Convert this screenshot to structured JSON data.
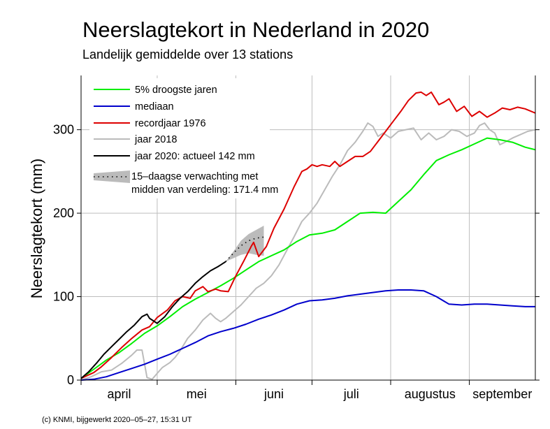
{
  "chart_data": {
    "type": "line",
    "title": "Neerslagtekort in Nederland in 2020",
    "subtitle": "Landelijk gemiddelde over 13 stations",
    "ylabel": "Neerslagtekort (mm)",
    "xlabel": "",
    "ylim": [
      0,
      365
    ],
    "yticks": [
      0,
      100,
      200,
      300
    ],
    "grid": true,
    "x_unit": "day of season (1 april = 0)",
    "xlim": [
      0,
      179
    ],
    "months": [
      {
        "label": "april",
        "start": 0,
        "end": 30
      },
      {
        "label": "mei",
        "start": 30,
        "end": 61
      },
      {
        "label": "juni",
        "start": 61,
        "end": 91
      },
      {
        "label": "juli",
        "start": 91,
        "end": 122
      },
      {
        "label": "augustus",
        "start": 122,
        "end": 153
      },
      {
        "label": "september",
        "start": 153,
        "end": 179
      }
    ],
    "legend": {
      "placement": "top-left",
      "entries": [
        {
          "label": "5% droogste jaren",
          "color": "#00ee00"
        },
        {
          "label": "mediaan",
          "color": "#0000cc"
        },
        {
          "label": "recordjaar 1976",
          "color": "#dd0000"
        },
        {
          "label": "jaar 2018",
          "color": "#bbbbbb"
        },
        {
          "label": "jaar 2020: actueel 142 mm",
          "color": "#000000"
        }
      ],
      "forecast_line1": "15–daagse verwachting met",
      "forecast_line2": "midden van verdeling: 171.4 mm"
    },
    "series": [
      {
        "name": "5% droogste jaren",
        "color": "#00ee00",
        "x": [
          0,
          5,
          10,
          15,
          20,
          25,
          30,
          35,
          40,
          45,
          50,
          55,
          60,
          65,
          70,
          75,
          80,
          85,
          90,
          95,
          100,
          105,
          110,
          115,
          120,
          125,
          130,
          135,
          140,
          145,
          150,
          155,
          160,
          165,
          170,
          175,
          179
        ],
        "values": [
          2,
          13,
          24,
          33,
          44,
          56,
          65,
          76,
          88,
          97,
          105,
          113,
          122,
          132,
          142,
          149,
          156,
          166,
          174,
          176,
          180,
          190,
          200,
          201,
          200,
          214,
          228,
          246,
          263,
          270,
          276,
          283,
          290,
          288,
          285,
          279,
          276
        ]
      },
      {
        "name": "mediaan",
        "color": "#0000cc",
        "x": [
          0,
          5,
          10,
          15,
          20,
          25,
          30,
          35,
          40,
          45,
          50,
          55,
          60,
          65,
          70,
          75,
          80,
          85,
          90,
          95,
          100,
          105,
          110,
          115,
          120,
          125,
          130,
          135,
          140,
          145,
          150,
          155,
          160,
          165,
          170,
          175,
          179
        ],
        "values": [
          0,
          1,
          4,
          9,
          14,
          19,
          25,
          31,
          38,
          45,
          53,
          58,
          62,
          67,
          73,
          78,
          84,
          91,
          95,
          96,
          98,
          101,
          103,
          105,
          107,
          108,
          108,
          107,
          100,
          91,
          90,
          91,
          91,
          90,
          89,
          88,
          88
        ]
      },
      {
        "name": "recordjaar 1976",
        "color": "#dd0000",
        "x": [
          0,
          5,
          8,
          12,
          16,
          20,
          24,
          27,
          30,
          34,
          37,
          40,
          43,
          45,
          48,
          50,
          53,
          55,
          58,
          61,
          64,
          67,
          68,
          70,
          73,
          76,
          80,
          84,
          87,
          89,
          91,
          93,
          95,
          98,
          100,
          102,
          105,
          108,
          111,
          114,
          117,
          120,
          123,
          126,
          129,
          132,
          134,
          136,
          138,
          141,
          143,
          145,
          148,
          151,
          154,
          157,
          160,
          163,
          166,
          169,
          172,
          175,
          179
        ],
        "values": [
          2,
          9,
          16,
          27,
          39,
          50,
          60,
          64,
          75,
          84,
          95,
          100,
          98,
          107,
          112,
          106,
          109,
          107,
          106,
          125,
          142,
          160,
          165,
          148,
          160,
          182,
          205,
          232,
          250,
          253,
          258,
          256,
          258,
          256,
          262,
          256,
          262,
          268,
          268,
          274,
          286,
          298,
          310,
          322,
          335,
          344,
          345,
          341,
          345,
          330,
          333,
          337,
          322,
          328,
          316,
          322,
          315,
          320,
          326,
          324,
          327,
          325,
          320
        ]
      },
      {
        "name": "jaar 2018",
        "color": "#bbbbbb",
        "x": [
          0,
          4,
          8,
          12,
          16,
          20,
          22,
          24,
          26,
          28,
          30,
          32,
          35,
          37,
          39,
          42,
          45,
          48,
          51,
          53,
          55,
          57,
          60,
          63,
          66,
          69,
          72,
          75,
          78,
          81,
          84,
          87,
          90,
          93,
          96,
          99,
          102,
          105,
          108,
          111,
          113,
          115,
          117,
          119,
          122,
          125,
          128,
          131,
          134,
          137,
          140,
          143,
          146,
          149,
          152,
          155,
          157,
          159,
          161,
          163,
          165,
          167,
          170,
          173,
          176,
          179
        ],
        "values": [
          0,
          4,
          10,
          12,
          20,
          30,
          36,
          36,
          3,
          1,
          8,
          15,
          21,
          27,
          35,
          50,
          60,
          72,
          80,
          74,
          70,
          74,
          82,
          90,
          100,
          110,
          116,
          125,
          138,
          155,
          172,
          190,
          200,
          212,
          228,
          244,
          258,
          275,
          285,
          298,
          308,
          304,
          292,
          296,
          290,
          298,
          300,
          302,
          288,
          296,
          288,
          292,
          300,
          298,
          292,
          296,
          305,
          308,
          300,
          296,
          282,
          285,
          290,
          294,
          298,
          300
        ]
      },
      {
        "name": "jaar 2020: actueel 142 mm",
        "color": "#000000",
        "x": [
          0,
          3,
          6,
          9,
          12,
          15,
          18,
          21,
          24,
          26,
          27,
          28,
          30,
          33,
          36,
          39,
          42,
          45,
          48,
          51,
          54,
          55,
          57
        ],
        "values": [
          2,
          10,
          20,
          31,
          40,
          49,
          58,
          66,
          76,
          79,
          74,
          72,
          68,
          76,
          88,
          98,
          106,
          116,
          124,
          131,
          136,
          138,
          142
        ]
      }
    ],
    "forecast": {
      "x": [
        57,
        60,
        63,
        66,
        69,
        72
      ],
      "mid": [
        142,
        152,
        161,
        167,
        170,
        171.4
      ],
      "low": [
        142,
        146,
        150,
        152,
        150,
        149
      ],
      "high": [
        142,
        154,
        167,
        175,
        180,
        185
      ],
      "band_color": "#bbbbbb"
    }
  },
  "footer": "(c) KNMI, bijgewerkt 2020–05–27, 15:31 UT"
}
